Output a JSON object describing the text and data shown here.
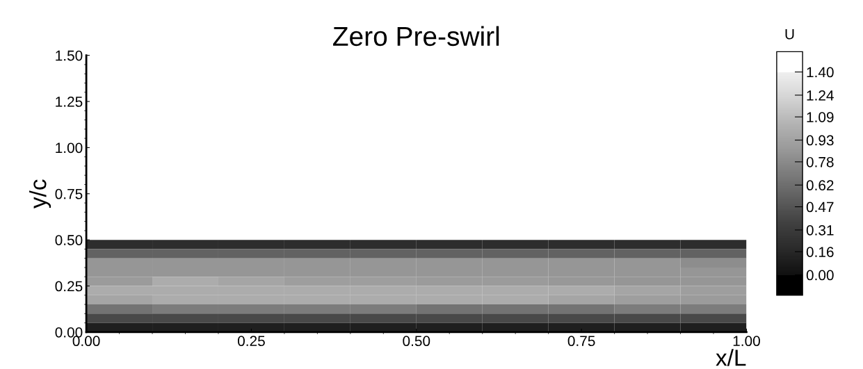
{
  "chart_data": {
    "type": "heatmap",
    "title": "Zero Pre-swirl",
    "xlabel": "x/L",
    "ylabel": "y/c",
    "clabel": "U",
    "x": [
      0.05,
      0.15,
      0.25,
      0.35,
      0.45,
      0.55,
      0.65,
      0.75,
      0.85,
      0.95
    ],
    "y": [
      0.475,
      0.425,
      0.375,
      0.325,
      0.275,
      0.225,
      0.175,
      0.125,
      0.075,
      0.025
    ],
    "cells": [
      [
        0.2,
        0.2,
        0.2,
        0.2,
        0.2,
        0.2,
        0.2,
        0.2,
        0.2,
        0.2
      ],
      [
        0.55,
        0.55,
        0.55,
        0.55,
        0.55,
        0.55,
        0.55,
        0.55,
        0.55,
        0.55
      ],
      [
        0.85,
        0.85,
        0.85,
        0.85,
        0.85,
        0.85,
        0.85,
        0.85,
        0.85,
        0.8
      ],
      [
        0.85,
        0.85,
        0.85,
        0.85,
        0.85,
        0.85,
        0.85,
        0.85,
        0.85,
        0.85
      ],
      [
        0.88,
        1.0,
        0.95,
        0.9,
        0.9,
        0.88,
        0.88,
        0.86,
        0.85,
        0.85
      ],
      [
        1.0,
        1.0,
        1.0,
        1.0,
        1.0,
        1.0,
        1.0,
        1.0,
        0.95,
        0.9
      ],
      [
        0.95,
        1.0,
        1.0,
        1.0,
        1.0,
        1.0,
        1.0,
        0.95,
        0.9,
        0.88
      ],
      [
        0.65,
        0.7,
        0.7,
        0.7,
        0.7,
        0.65,
        0.65,
        0.65,
        0.7,
        0.7
      ],
      [
        0.4,
        0.4,
        0.4,
        0.4,
        0.4,
        0.4,
        0.4,
        0.4,
        0.4,
        0.4
      ],
      [
        0.1,
        0.1,
        0.1,
        0.1,
        0.1,
        0.1,
        0.1,
        0.1,
        0.1,
        0.1
      ]
    ],
    "colors": [
      "#000000",
      "#111111",
      "#2a2a2a",
      "#404040",
      "#5e5e5e",
      "#7c7c7c",
      "#9a9a9a",
      "#b4b4b4",
      "#d4d4d4",
      "#efefef",
      "#ffffff"
    ],
    "clim": [
      0.0,
      1.4
    ],
    "cticks": [
      {
        "value": 0.0,
        "label": "0.00"
      },
      {
        "value": 0.16,
        "label": "0.16"
      },
      {
        "value": 0.31,
        "label": "0.31"
      },
      {
        "value": 0.47,
        "label": "0.47"
      },
      {
        "value": 0.62,
        "label": "0.62"
      },
      {
        "value": 0.78,
        "label": "0.78"
      },
      {
        "value": 0.93,
        "label": "0.93"
      },
      {
        "value": 1.09,
        "label": "1.09"
      },
      {
        "value": 1.24,
        "label": "1.24"
      },
      {
        "value": 1.4,
        "label": "1.40"
      }
    ],
    "xlim": [
      0.0,
      1.0
    ],
    "xticks": [
      {
        "value": 0.0,
        "label": "0.00"
      },
      {
        "value": 0.25,
        "label": "0.25"
      },
      {
        "value": 0.5,
        "label": "0.50"
      },
      {
        "value": 0.75,
        "label": "0.75"
      },
      {
        "value": 1.0,
        "label": "1.00"
      }
    ],
    "ylim": [
      0.0,
      1.5
    ],
    "yticks": [
      {
        "value": 0.0,
        "label": "0.00"
      },
      {
        "value": 0.25,
        "label": "0.25"
      },
      {
        "value": 0.5,
        "label": "0.50"
      },
      {
        "value": 0.75,
        "label": "0.75"
      },
      {
        "value": 1.0,
        "label": "1.00"
      },
      {
        "value": 1.25,
        "label": "1.25"
      },
      {
        "value": 1.5,
        "label": "1.50"
      }
    ],
    "grid": false
  }
}
